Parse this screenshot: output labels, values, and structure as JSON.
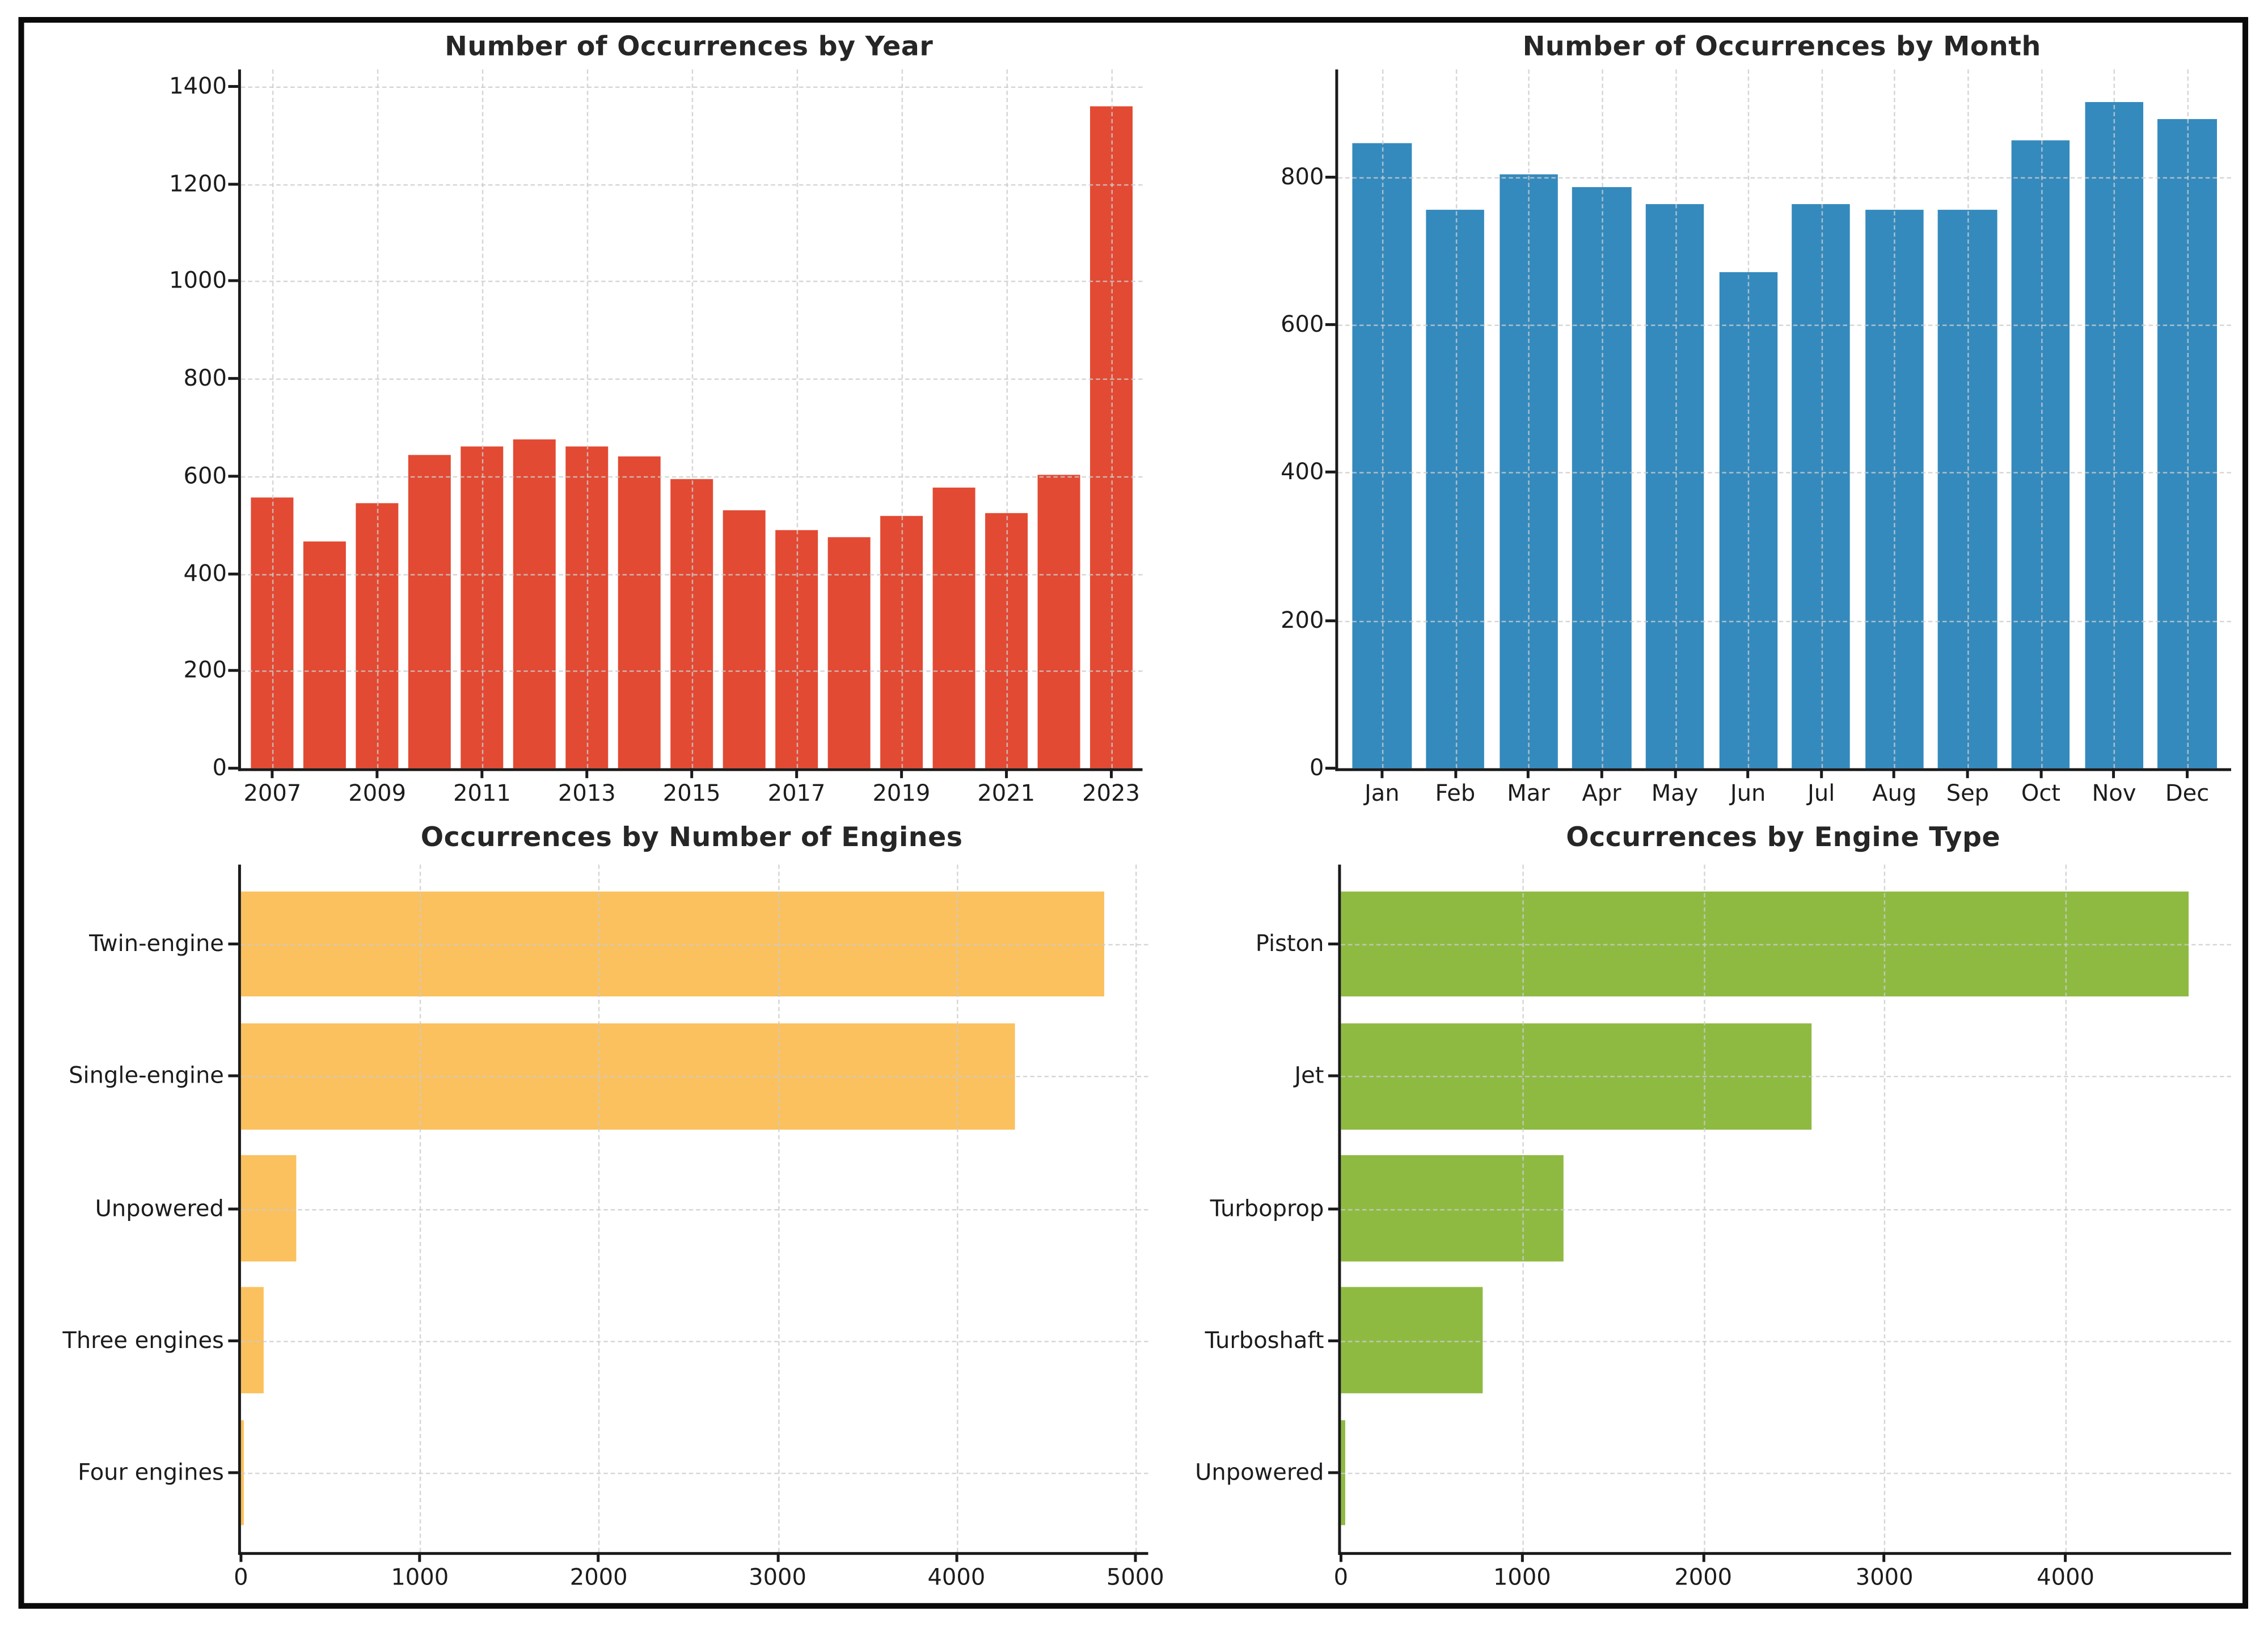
{
  "figure": {
    "background": "#ffffff",
    "border_color": "#0a0a0a",
    "grid_color": "#cccccc",
    "spine_color": "#1a1a1a",
    "text_color": "#1c1c1c"
  },
  "chart_data": [
    {
      "type": "bar",
      "orientation": "vertical",
      "title": "Number of Occurrences by Year",
      "bar_color": "#E24A33",
      "categories": [
        "2007",
        "2008",
        "2009",
        "2010",
        "2011",
        "2012",
        "2013",
        "2014",
        "2015",
        "2016",
        "2017",
        "2018",
        "2019",
        "2020",
        "2021",
        "2022",
        "2023"
      ],
      "values": [
        557,
        465,
        545,
        643,
        660,
        676,
        660,
        640,
        594,
        530,
        489,
        474,
        519,
        576,
        523,
        603,
        1360
      ],
      "label_every": 2,
      "value_axis": {
        "ticks": [
          0,
          200,
          400,
          600,
          800,
          1000,
          1200,
          1400
        ],
        "max": 1435
      },
      "grid": "both",
      "legend": null
    },
    {
      "type": "bar",
      "orientation": "vertical",
      "title": "Number of Occurrences by Month",
      "bar_color": "#348ABD",
      "categories": [
        "Jan",
        "Feb",
        "Mar",
        "Apr",
        "May",
        "Jun",
        "Jul",
        "Aug",
        "Sep",
        "Oct",
        "Nov",
        "Dec"
      ],
      "values": [
        846,
        756,
        804,
        786,
        762,
        671,
        763,
        755,
        755,
        850,
        900,
        878
      ],
      "label_every": 1,
      "value_axis": {
        "ticks": [
          0,
          200,
          400,
          600,
          800
        ],
        "max": 945
      },
      "grid": "both",
      "legend": null
    },
    {
      "type": "bar",
      "orientation": "horizontal",
      "title": "Occurrences by Number of Engines",
      "bar_color": "#FBC15E",
      "categories": [
        "Twin-engine",
        "Single-engine",
        "Unpowered",
        "Three engines",
        "Four engines"
      ],
      "values": [
        4830,
        4330,
        310,
        130,
        15
      ],
      "label_every": 1,
      "value_axis": {
        "ticks": [
          0,
          1000,
          2000,
          3000,
          4000,
          5000
        ],
        "max": 5072
      },
      "grid": "both",
      "legend": null
    },
    {
      "type": "bar",
      "orientation": "horizontal",
      "title": "Occurrences by Engine Type",
      "bar_color": "#8EBA42",
      "categories": [
        "Piston",
        "Jet",
        "Turboprop",
        "Turboshaft",
        "Unpowered"
      ],
      "values": [
        4680,
        2600,
        1230,
        780,
        20
      ],
      "label_every": 1,
      "value_axis": {
        "ticks": [
          0,
          1000,
          2000,
          3000,
          4000
        ],
        "max": 4914
      },
      "grid": "both",
      "legend": null
    }
  ]
}
